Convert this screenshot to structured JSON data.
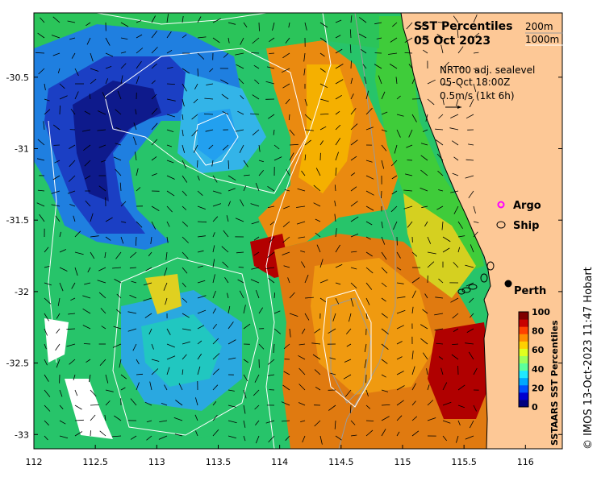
{
  "title": {
    "line1": "SST Percentiles",
    "line2": "05 Oct 2023"
  },
  "contour_legend": {
    "items": [
      {
        "label": "200m",
        "color": "#9a9a9a"
      },
      {
        "label": "1000m",
        "color": "#ffffff"
      }
    ]
  },
  "current_info": {
    "line1": "NRT00 adj. sealevel",
    "line2": "05-Oct 18:00Z",
    "line3": "0.5m/s (1kt 6h)"
  },
  "observation_legend": {
    "items": [
      {
        "label": "Argo",
        "color": "#ff00ff",
        "icon": "argo-circle-icon"
      },
      {
        "label": "Ship",
        "color": "#000000",
        "icon": "ship-ellipse-icon"
      }
    ]
  },
  "place": {
    "label": "Perth",
    "lon": 115.86,
    "lat": -31.95
  },
  "colorbar": {
    "title": "SSTAARS SST Percentiles",
    "ticks": [
      "0",
      "20",
      "40",
      "60",
      "80",
      "100"
    ],
    "colors": [
      "#00007f",
      "#0000d0",
      "#0050ff",
      "#00a8ff",
      "#20e8ff",
      "#5cff9c",
      "#9cff5c",
      "#e0ff20",
      "#ffd000",
      "#ff8c00",
      "#ff4000",
      "#c80000",
      "#7f0000"
    ]
  },
  "credit": "© IMOS 13-Oct-2023 11:47 Hobart",
  "axes": {
    "lon_ticks": [
      "112",
      "112.5",
      "113",
      "113.5",
      "114",
      "114.5",
      "115",
      "115.5",
      "116"
    ],
    "lat_ticks": [
      "-30.5",
      "-31",
      "-31.5",
      "-32",
      "-32.5",
      "-33"
    ],
    "lon_range": [
      112,
      116.3
    ],
    "lat_range": [
      -33.1,
      -30.05
    ]
  },
  "colors": {
    "land": "#fdc896",
    "coast": "#000000"
  }
}
